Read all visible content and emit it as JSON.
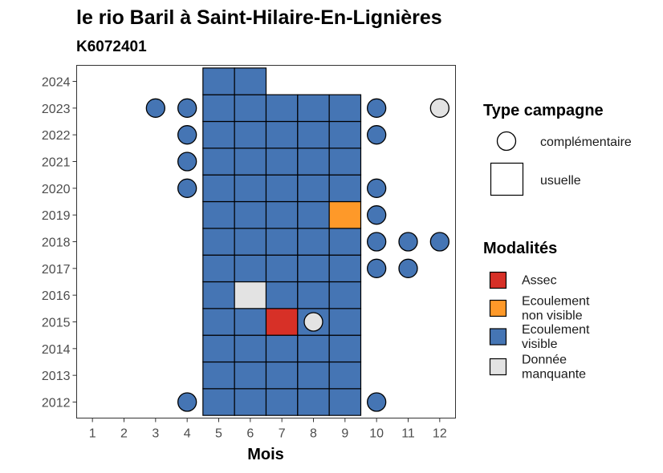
{
  "chart_data": {
    "type": "heatmap",
    "title": "le rio Baril à Saint-Hilaire-En-Lignières",
    "subtitle": "K6072401",
    "xlabel": "Mois",
    "ylabel": "",
    "x_ticks": [
      "1",
      "2",
      "3",
      "4",
      "5",
      "6",
      "7",
      "8",
      "9",
      "10",
      "11",
      "12"
    ],
    "y_ticks": [
      "2012",
      "2013",
      "2014",
      "2015",
      "2016",
      "2017",
      "2018",
      "2019",
      "2020",
      "2021",
      "2022",
      "2023",
      "2024"
    ],
    "xlim": [
      0.5,
      12.5
    ],
    "ylim": [
      2011.4,
      2024.6
    ],
    "grid": false,
    "legend_position": "right",
    "colors": {
      "Assec": "#d73027",
      "Ecoulement non visible": "#fe9929",
      "Ecoulement visible": "#4575b4",
      "Donnée manquante": "#e3e3e3"
    },
    "legend_type": {
      "title": "Type campagne",
      "items": [
        {
          "label": "complémentaire",
          "shape": "circle"
        },
        {
          "label": "usuelle",
          "shape": "square"
        }
      ]
    },
    "legend_modalites": {
      "title": "Modalités",
      "items": [
        {
          "key": "Assec",
          "lines": [
            "Assec"
          ]
        },
        {
          "key": "Ecoulement non visible",
          "lines": [
            "Ecoulement",
            "non visible"
          ]
        },
        {
          "key": "Ecoulement visible",
          "lines": [
            "Ecoulement",
            "visible"
          ]
        },
        {
          "key": "Donnée manquante",
          "lines": [
            "Donnée",
            "manquante"
          ]
        }
      ]
    },
    "usuelle": [
      {
        "year": 2012,
        "months": [
          5,
          6,
          7,
          8,
          9
        ],
        "values": [
          "Ecoulement visible",
          "Ecoulement visible",
          "Ecoulement visible",
          "Ecoulement visible",
          "Ecoulement visible"
        ]
      },
      {
        "year": 2013,
        "months": [
          5,
          6,
          7,
          8,
          9
        ],
        "values": [
          "Ecoulement visible",
          "Ecoulement visible",
          "Ecoulement visible",
          "Ecoulement visible",
          "Ecoulement visible"
        ]
      },
      {
        "year": 2014,
        "months": [
          5,
          6,
          7,
          8,
          9
        ],
        "values": [
          "Ecoulement visible",
          "Ecoulement visible",
          "Ecoulement visible",
          "Ecoulement visible",
          "Ecoulement visible"
        ]
      },
      {
        "year": 2015,
        "months": [
          5,
          6,
          7,
          8,
          9
        ],
        "values": [
          "Ecoulement visible",
          "Ecoulement visible",
          "Assec",
          "Ecoulement visible",
          "Ecoulement visible"
        ]
      },
      {
        "year": 2016,
        "months": [
          5,
          6,
          7,
          8,
          9
        ],
        "values": [
          "Ecoulement visible",
          "Donnée manquante",
          "Ecoulement visible",
          "Ecoulement visible",
          "Ecoulement visible"
        ]
      },
      {
        "year": 2017,
        "months": [
          5,
          6,
          7,
          8,
          9
        ],
        "values": [
          "Ecoulement visible",
          "Ecoulement visible",
          "Ecoulement visible",
          "Ecoulement visible",
          "Ecoulement visible"
        ]
      },
      {
        "year": 2018,
        "months": [
          5,
          6,
          7,
          8,
          9
        ],
        "values": [
          "Ecoulement visible",
          "Ecoulement visible",
          "Ecoulement visible",
          "Ecoulement visible",
          "Ecoulement visible"
        ]
      },
      {
        "year": 2019,
        "months": [
          5,
          6,
          7,
          8,
          9
        ],
        "values": [
          "Ecoulement visible",
          "Ecoulement visible",
          "Ecoulement visible",
          "Ecoulement visible",
          "Ecoulement non visible"
        ]
      },
      {
        "year": 2020,
        "months": [
          5,
          6,
          7,
          8,
          9
        ],
        "values": [
          "Ecoulement visible",
          "Ecoulement visible",
          "Ecoulement visible",
          "Ecoulement visible",
          "Ecoulement visible"
        ]
      },
      {
        "year": 2021,
        "months": [
          5,
          6,
          7,
          8,
          9
        ],
        "values": [
          "Ecoulement visible",
          "Ecoulement visible",
          "Ecoulement visible",
          "Ecoulement visible",
          "Ecoulement visible"
        ]
      },
      {
        "year": 2022,
        "months": [
          5,
          6,
          7,
          8,
          9
        ],
        "values": [
          "Ecoulement visible",
          "Ecoulement visible",
          "Ecoulement visible",
          "Ecoulement visible",
          "Ecoulement visible"
        ]
      },
      {
        "year": 2023,
        "months": [
          5,
          6,
          7,
          8,
          9
        ],
        "values": [
          "Ecoulement visible",
          "Ecoulement visible",
          "Ecoulement visible",
          "Ecoulement visible",
          "Ecoulement visible"
        ]
      },
      {
        "year": 2024,
        "months": [
          5,
          6
        ],
        "values": [
          "Ecoulement visible",
          "Ecoulement visible"
        ]
      }
    ],
    "complementaire": [
      {
        "year": 2012,
        "month": 4,
        "value": "Ecoulement visible"
      },
      {
        "year": 2012,
        "month": 10,
        "value": "Ecoulement visible"
      },
      {
        "year": 2015,
        "month": 8,
        "value": "Donnée manquante"
      },
      {
        "year": 2017,
        "month": 10,
        "value": "Ecoulement visible"
      },
      {
        "year": 2017,
        "month": 11,
        "value": "Ecoulement visible"
      },
      {
        "year": 2018,
        "month": 10,
        "value": "Ecoulement visible"
      },
      {
        "year": 2018,
        "month": 11,
        "value": "Ecoulement visible"
      },
      {
        "year": 2018,
        "month": 12,
        "value": "Ecoulement visible"
      },
      {
        "year": 2019,
        "month": 10,
        "value": "Ecoulement visible"
      },
      {
        "year": 2020,
        "month": 4,
        "value": "Ecoulement visible"
      },
      {
        "year": 2020,
        "month": 10,
        "value": "Ecoulement visible"
      },
      {
        "year": 2021,
        "month": 4,
        "value": "Ecoulement visible"
      },
      {
        "year": 2022,
        "month": 4,
        "value": "Ecoulement visible"
      },
      {
        "year": 2022,
        "month": 10,
        "value": "Ecoulement visible"
      },
      {
        "year": 2023,
        "month": 3,
        "value": "Ecoulement visible"
      },
      {
        "year": 2023,
        "month": 4,
        "value": "Ecoulement visible"
      },
      {
        "year": 2023,
        "month": 10,
        "value": "Ecoulement visible"
      },
      {
        "year": 2023,
        "month": 12,
        "value": "Donnée manquante"
      }
    ]
  }
}
